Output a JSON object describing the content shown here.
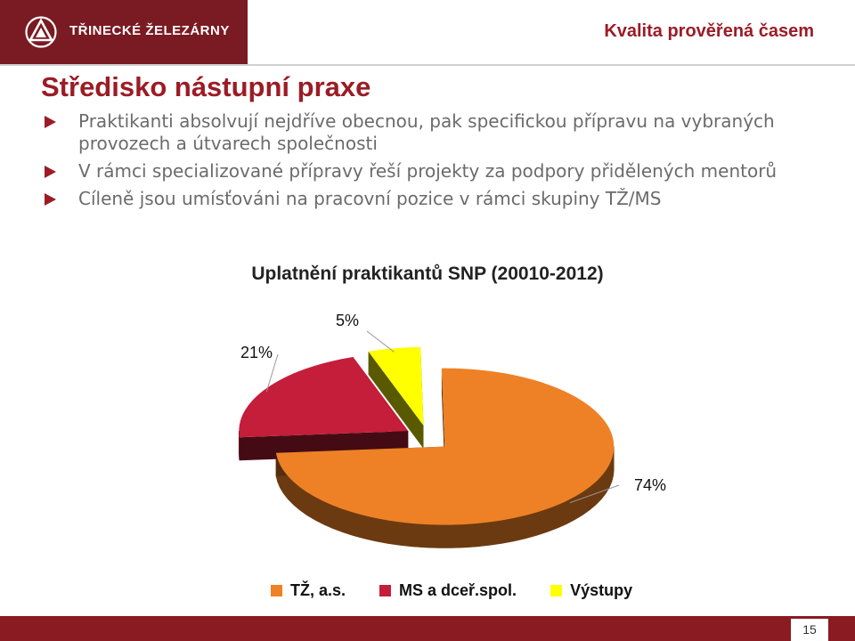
{
  "header": {
    "company_name": "TŘINECKÉ ŽELEZÁRNY",
    "slogan": "Kvalita prověřená časem"
  },
  "slide": {
    "title": "Středisko nástupní praxe",
    "bullets": [
      "Praktikanti absolvují nejdříve obecnou, pak specifickou přípravu na vybraných provozech a útvarech společnosti",
      "V rámci specializované přípravy řeší projekty za podpory přidělených mentorů",
      "Cíleně jsou umísťováni na pracovní pozice v rámci skupiny TŽ/MS"
    ],
    "page_number": "15"
  },
  "colors": {
    "brand": "#9b1c25",
    "series": [
      "#ee8125",
      "#c41e3a",
      "#ffff00"
    ]
  },
  "chart_data": {
    "type": "pie",
    "title": "Uplatnění praktikantů SNP (20010-2012)",
    "categories": [
      "TŽ, a.s.",
      "MS a dceř.spol.",
      "Výstupy"
    ],
    "values": [
      74,
      21,
      5
    ],
    "data_labels": [
      "74%",
      "21%",
      "5%"
    ],
    "three_d": true,
    "exploded": true,
    "legend_position": "bottom"
  }
}
